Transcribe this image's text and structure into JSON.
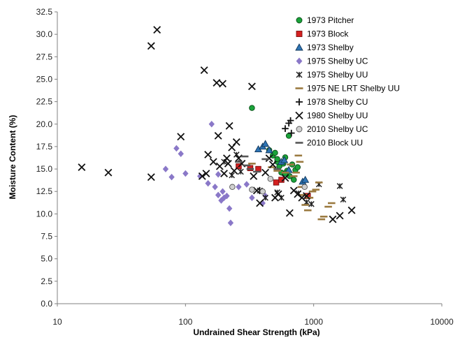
{
  "chart_data": {
    "type": "scatter",
    "title": "",
    "xlabel": "Undrained Shear Strength (kPa)",
    "ylabel": "Moisture Content (%)",
    "x_scale": "log",
    "xlim": [
      10,
      10000
    ],
    "ylim": [
      0,
      32.5
    ],
    "x_ticks": [
      "10",
      "100",
      "1000",
      "10000"
    ],
    "y_ticks": [
      "0.0",
      "2.5",
      "5.0",
      "7.5",
      "10.0",
      "12.5",
      "15.0",
      "17.5",
      "20.0",
      "22.5",
      "25.0",
      "27.5",
      "30.0",
      "32.5"
    ],
    "grid": false,
    "legend_position": "top-right",
    "series": [
      {
        "name": "1973 Pitcher",
        "marker": "circle",
        "color": "#1aa33a",
        "stroke": "#0a4d18",
        "points": [
          [
            330,
            21.8
          ],
          [
            450,
            17.1
          ],
          [
            480,
            16.5
          ],
          [
            500,
            16.8
          ],
          [
            520,
            15.8
          ],
          [
            540,
            15.3
          ],
          [
            560,
            14.6
          ],
          [
            580,
            15.6
          ],
          [
            600,
            16.3
          ],
          [
            620,
            14.8
          ],
          [
            640,
            18.7
          ],
          [
            650,
            14.2
          ],
          [
            680,
            15.5
          ],
          [
            700,
            13.8
          ],
          [
            720,
            14.9
          ],
          [
            750,
            15.2
          ],
          [
            520,
            16.1
          ],
          [
            600,
            14.5
          ]
        ]
      },
      {
        "name": "1973 Block",
        "marker": "square",
        "color": "#d42020",
        "stroke": "#7a0e0e",
        "points": [
          [
            260,
            15.3
          ],
          [
            320,
            15.1
          ],
          [
            370,
            15.0
          ],
          [
            510,
            13.5
          ],
          [
            560,
            13.8
          ],
          [
            900,
            12.0
          ]
        ]
      },
      {
        "name": "1973 Shelby",
        "marker": "triangle",
        "color": "#2e75b6",
        "stroke": "#12375a",
        "points": [
          [
            370,
            17.2
          ],
          [
            400,
            17.5
          ],
          [
            420,
            17.8
          ],
          [
            450,
            17.1
          ],
          [
            560,
            15.8
          ],
          [
            590,
            16.0
          ],
          [
            640,
            14.9
          ],
          [
            820,
            13.6
          ],
          [
            860,
            13.8
          ]
        ]
      },
      {
        "name": "1975 Shelby UC",
        "marker": "diamond",
        "color": "#8a78c8",
        "stroke": "#8a78c8",
        "points": [
          [
            70,
            15.0
          ],
          [
            78,
            14.1
          ],
          [
            85,
            17.3
          ],
          [
            92,
            16.7
          ],
          [
            100,
            14.5
          ],
          [
            130,
            14.2
          ],
          [
            150,
            13.4
          ],
          [
            160,
            20.0
          ],
          [
            170,
            13.0
          ],
          [
            180,
            12.1
          ],
          [
            190,
            11.5
          ],
          [
            195,
            12.5
          ],
          [
            200,
            11.8
          ],
          [
            210,
            12.0
          ],
          [
            220,
            10.6
          ],
          [
            225,
            9.0
          ],
          [
            260,
            13.0
          ],
          [
            300,
            13.3
          ],
          [
            330,
            11.8
          ],
          [
            400,
            11.2
          ],
          [
            180,
            14.4
          ],
          [
            420,
            12.0
          ]
        ]
      },
      {
        "name": "1975 Shelby UU",
        "marker": "asterisk",
        "color": "#222222",
        "stroke": "#222222",
        "points": [
          [
            200,
            15.8
          ],
          [
            230,
            14.3
          ],
          [
            250,
            16.6
          ],
          [
            270,
            14.7
          ],
          [
            380,
            12.6
          ],
          [
            420,
            11.8
          ],
          [
            520,
            12.4
          ],
          [
            560,
            11.8
          ],
          [
            760,
            12.3
          ],
          [
            880,
            11.3
          ],
          [
            960,
            11.1
          ],
          [
            1100,
            13.3
          ],
          [
            1600,
            13.1
          ],
          [
            1700,
            11.6
          ]
        ]
      },
      {
        "name": "1975 NE LRT Shelby UU",
        "marker": "dash",
        "color": "#9b7a40",
        "stroke": "#9b7a40",
        "points": [
          [
            330,
            15.6
          ],
          [
            470,
            15.2
          ],
          [
            520,
            14.8
          ],
          [
            600,
            14.6
          ],
          [
            660,
            15.5
          ],
          [
            700,
            14.2
          ],
          [
            730,
            14.6
          ],
          [
            760,
            16.5
          ],
          [
            780,
            15.8
          ],
          [
            800,
            13.0
          ],
          [
            830,
            12.1
          ],
          [
            860,
            11.0
          ],
          [
            900,
            10.4
          ],
          [
            930,
            11.8
          ],
          [
            980,
            12.5
          ],
          [
            1040,
            12.7
          ],
          [
            1100,
            13.5
          ],
          [
            1150,
            9.4
          ],
          [
            1200,
            9.7
          ],
          [
            1300,
            10.8
          ],
          [
            1380,
            11.2
          ]
        ]
      },
      {
        "name": "1978 Shelby CU",
        "marker": "plus",
        "color": "#111111",
        "stroke": "#111111",
        "points": [
          [
            600,
            19.5
          ],
          [
            640,
            20.1
          ],
          [
            660,
            20.4
          ],
          [
            670,
            19.0
          ]
        ]
      },
      {
        "name": "1980 Shelby UU",
        "marker": "x",
        "color": "#111111",
        "stroke": "#111111",
        "points": [
          [
            15.5,
            15.2
          ],
          [
            25,
            14.6
          ],
          [
            54,
            14.1
          ],
          [
            54,
            28.7
          ],
          [
            60,
            30.5
          ],
          [
            92,
            18.6
          ],
          [
            135,
            14.2
          ],
          [
            140,
            26.0
          ],
          [
            145,
            14.5
          ],
          [
            150,
            16.6
          ],
          [
            165,
            15.8
          ],
          [
            175,
            24.6
          ],
          [
            180,
            18.7
          ],
          [
            185,
            15.3
          ],
          [
            195,
            24.5
          ],
          [
            200,
            14.5
          ],
          [
            210,
            16.2
          ],
          [
            215,
            15.6
          ],
          [
            220,
            19.8
          ],
          [
            230,
            17.4
          ],
          [
            240,
            14.8
          ],
          [
            250,
            18.0
          ],
          [
            260,
            16.2
          ],
          [
            275,
            15.6
          ],
          [
            330,
            24.2
          ],
          [
            340,
            14.2
          ],
          [
            360,
            12.6
          ],
          [
            380,
            11.2
          ],
          [
            420,
            14.6
          ],
          [
            450,
            16.2
          ],
          [
            480,
            15.5
          ],
          [
            500,
            11.8
          ],
          [
            530,
            12.2
          ],
          [
            600,
            14.0
          ],
          [
            650,
            10.1
          ],
          [
            700,
            12.6
          ],
          [
            750,
            12.2
          ],
          [
            810,
            11.8
          ],
          [
            880,
            12.0
          ],
          [
            1410,
            9.4
          ],
          [
            1600,
            9.8
          ],
          [
            1980,
            10.4
          ]
        ]
      },
      {
        "name": "2010 Shelby UC",
        "marker": "circle",
        "color": "#d0d0d0",
        "stroke": "#555555",
        "points": [
          [
            232,
            13.0
          ],
          [
            330,
            12.7
          ],
          [
            400,
            12.5
          ],
          [
            460,
            13.9
          ],
          [
            850,
            13.0
          ]
        ]
      },
      {
        "name": "2010 Block UU",
        "marker": "dash",
        "color": "#555555",
        "stroke": "#555555",
        "points": [
          [
            260,
            15.8
          ],
          [
            290,
            16.4
          ],
          [
            300,
            15.4
          ],
          [
            320,
            15.0
          ],
          [
            360,
            14.7
          ],
          [
            420,
            16.1
          ],
          [
            520,
            15.0
          ]
        ]
      }
    ]
  }
}
